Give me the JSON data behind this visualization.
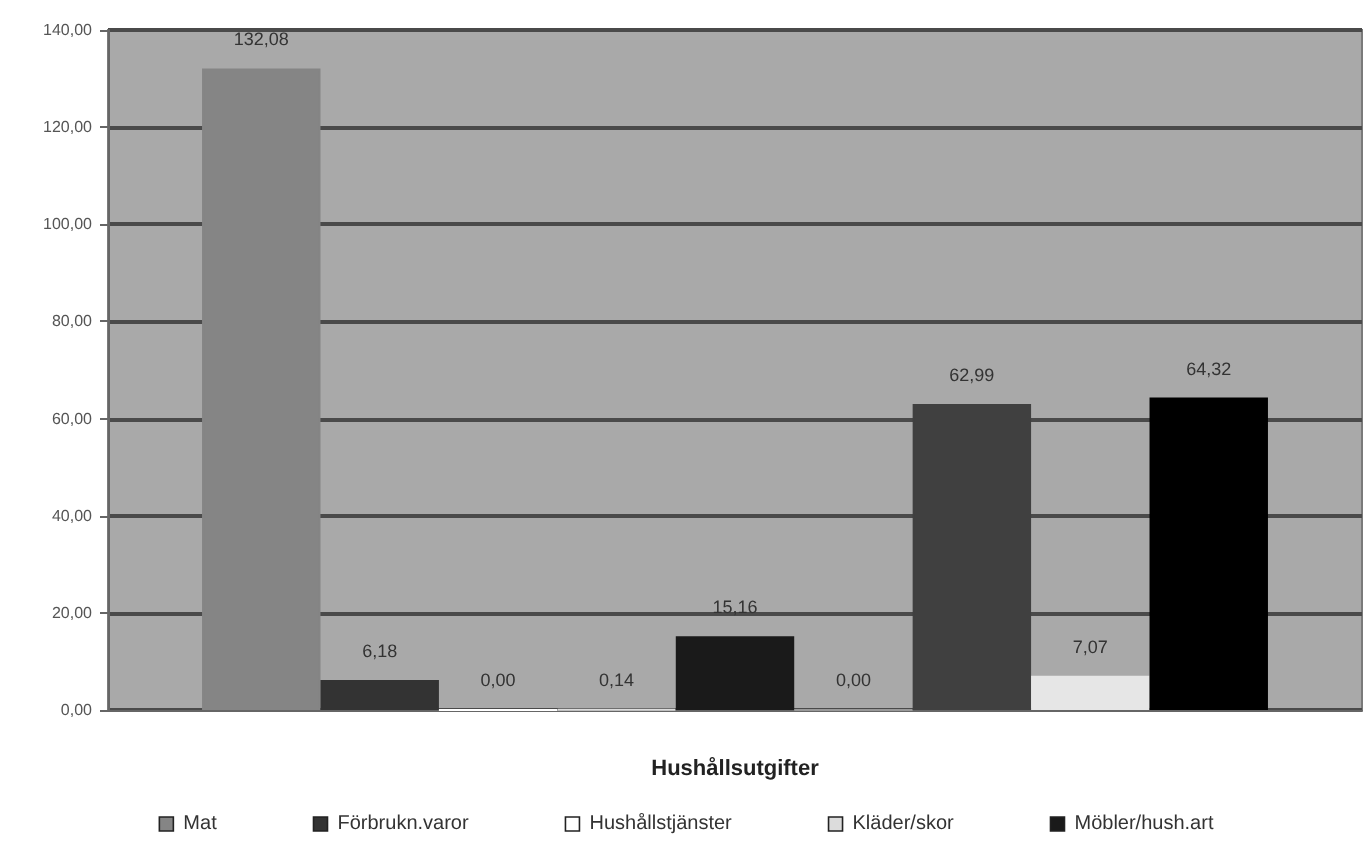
{
  "chart_data": {
    "type": "bar",
    "xlabel": "Hushållsutgifter",
    "categories": [
      null
    ],
    "tick_labels": "y",
    "ylim": [
      0,
      140
    ],
    "yticks": [
      {
        "value": 0,
        "label": "0,00"
      },
      {
        "value": 20,
        "label": "20,00"
      },
      {
        "value": 40,
        "label": "40,00"
      },
      {
        "value": 60,
        "label": "60,00"
      },
      {
        "value": 80,
        "label": "80,00"
      },
      {
        "value": 100,
        "label": "100,00"
      },
      {
        "value": 120,
        "label": "120,00"
      },
      {
        "value": 140,
        "label": "140,00"
      }
    ],
    "grid": "y",
    "legend": "bottom",
    "series": [
      {
        "name": "Mat",
        "color": "#858585",
        "values": [
          132.08
        ],
        "value_labels": [
          "132,08"
        ]
      },
      {
        "name": "Förbrukn.varor",
        "color": "#333333",
        "values": [
          6.18
        ],
        "value_labels": [
          "6,18"
        ]
      },
      {
        "name": "Hushållstjänster",
        "color": "#ffffff",
        "values": [
          0.0
        ],
        "value_labels": [
          "0,00"
        ]
      },
      {
        "name": "Kläder/skor",
        "color": "#dcdcdc",
        "values": [
          0.14
        ],
        "value_labels": [
          "0,14"
        ]
      },
      {
        "name": "Möbler/hush.art",
        "color": "#1a1a1a",
        "values": [
          15.16
        ],
        "value_labels": [
          "15,16"
        ]
      },
      {
        "color": "#999999",
        "values": [
          0.0
        ],
        "value_labels": [
          "0,00"
        ]
      },
      {
        "color": "#404040",
        "values": [
          62.99
        ],
        "value_labels": [
          "62,99"
        ]
      },
      {
        "color": "#e6e6e6",
        "values": [
          7.07
        ],
        "value_labels": [
          "7,07"
        ]
      },
      {
        "color": "#000000",
        "values": [
          64.32
        ],
        "value_labels": [
          "64,32"
        ]
      }
    ]
  }
}
